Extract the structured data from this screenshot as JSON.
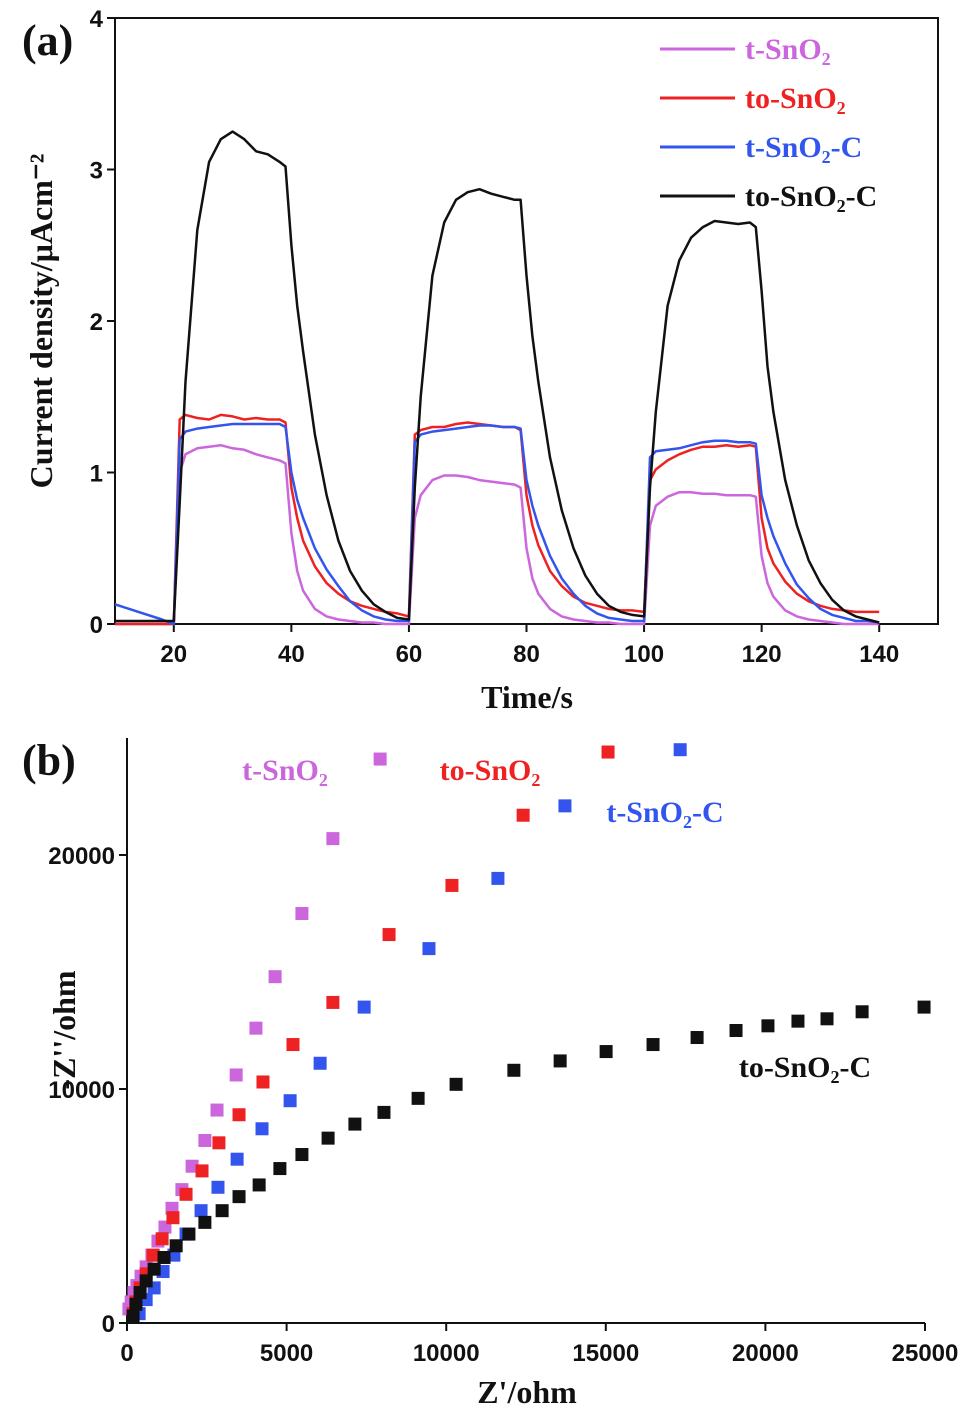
{
  "chart_data": [
    {
      "type": "line",
      "annotations": [
        "(a)"
      ],
      "xlabel": "Time/s",
      "ylabel": "Current density/μAcm⁻²",
      "xlim": [
        10,
        150
      ],
      "ylim": [
        0,
        4
      ],
      "xticks": [
        20,
        40,
        60,
        80,
        100,
        120,
        140
      ],
      "yticks": [
        0,
        1,
        2,
        3,
        4
      ],
      "legend": "upper right",
      "x": [
        10,
        14,
        18,
        20,
        21,
        22,
        24,
        26,
        28,
        30,
        32,
        34,
        36,
        38,
        39,
        40,
        41,
        42,
        44,
        46,
        48,
        50,
        52,
        54,
        56,
        58,
        60,
        61,
        62,
        64,
        66,
        68,
        70,
        72,
        74,
        76,
        78,
        79,
        80,
        81,
        82,
        84,
        86,
        88,
        90,
        92,
        94,
        96,
        98,
        100,
        101,
        102,
        104,
        106,
        108,
        110,
        112,
        114,
        116,
        118,
        119,
        120,
        121,
        122,
        124,
        126,
        128,
        130,
        132,
        134,
        136,
        138,
        140
      ],
      "series": [
        {
          "name": "t-SnO₂",
          "color": "#cc66dd",
          "values": [
            0,
            0,
            0,
            0.0,
            1.0,
            1.12,
            1.16,
            1.17,
            1.18,
            1.16,
            1.15,
            1.12,
            1.1,
            1.08,
            1.06,
            0.6,
            0.35,
            0.22,
            0.1,
            0.05,
            0.03,
            0.02,
            0.01,
            0.01,
            0.0,
            0.0,
            0.0,
            0.7,
            0.85,
            0.95,
            0.98,
            0.98,
            0.97,
            0.95,
            0.94,
            0.93,
            0.92,
            0.9,
            0.5,
            0.3,
            0.2,
            0.1,
            0.05,
            0.03,
            0.02,
            0.01,
            0.01,
            0.0,
            0.0,
            0.0,
            0.65,
            0.78,
            0.84,
            0.87,
            0.87,
            0.86,
            0.86,
            0.85,
            0.85,
            0.85,
            0.84,
            0.45,
            0.27,
            0.18,
            0.09,
            0.05,
            0.03,
            0.02,
            0.01,
            0.0,
            0.0,
            0.0,
            0
          ]
        },
        {
          "name": "to-SnO₂",
          "color": "#ee2222",
          "values": [
            0,
            0,
            0,
            0.0,
            1.35,
            1.38,
            1.36,
            1.35,
            1.38,
            1.37,
            1.35,
            1.36,
            1.35,
            1.35,
            1.33,
            0.9,
            0.7,
            0.55,
            0.38,
            0.27,
            0.2,
            0.15,
            0.12,
            0.1,
            0.08,
            0.07,
            0.05,
            1.25,
            1.28,
            1.3,
            1.3,
            1.32,
            1.33,
            1.32,
            1.31,
            1.3,
            1.3,
            1.28,
            0.85,
            0.65,
            0.52,
            0.35,
            0.25,
            0.18,
            0.14,
            0.12,
            0.1,
            0.09,
            0.09,
            0.08,
            0.95,
            1.02,
            1.08,
            1.12,
            1.15,
            1.17,
            1.17,
            1.18,
            1.17,
            1.18,
            1.17,
            0.7,
            0.5,
            0.4,
            0.28,
            0.2,
            0.15,
            0.12,
            0.1,
            0.09,
            0.08,
            0.08,
            0.08
          ]
        },
        {
          "name": "t-SnO₂-C",
          "color": "#3355ee",
          "values": [
            0.13,
            0.08,
            0.03,
            0.0,
            1.22,
            1.27,
            1.29,
            1.3,
            1.31,
            1.32,
            1.32,
            1.32,
            1.32,
            1.32,
            1.3,
            1.0,
            0.82,
            0.7,
            0.5,
            0.36,
            0.25,
            0.15,
            0.09,
            0.05,
            0.03,
            0.02,
            0.02,
            1.2,
            1.25,
            1.27,
            1.28,
            1.29,
            1.3,
            1.31,
            1.31,
            1.3,
            1.3,
            1.29,
            0.95,
            0.78,
            0.65,
            0.45,
            0.3,
            0.2,
            0.12,
            0.07,
            0.04,
            0.03,
            0.02,
            0.02,
            1.1,
            1.14,
            1.15,
            1.16,
            1.18,
            1.2,
            1.21,
            1.21,
            1.2,
            1.2,
            1.19,
            0.85,
            0.7,
            0.58,
            0.4,
            0.26,
            0.17,
            0.1,
            0.06,
            0.04,
            0.02,
            0.02,
            0.01
          ]
        },
        {
          "name": "to-SnO₂-C",
          "color": "#111111",
          "values": [
            0.02,
            0.02,
            0.02,
            0.02,
            0.8,
            1.6,
            2.6,
            3.05,
            3.2,
            3.25,
            3.2,
            3.12,
            3.1,
            3.05,
            3.02,
            2.5,
            2.1,
            1.8,
            1.25,
            0.85,
            0.55,
            0.35,
            0.22,
            0.13,
            0.08,
            0.04,
            0.03,
            0.9,
            1.5,
            2.3,
            2.65,
            2.8,
            2.85,
            2.87,
            2.84,
            2.82,
            2.8,
            2.8,
            2.3,
            1.9,
            1.6,
            1.1,
            0.75,
            0.5,
            0.32,
            0.2,
            0.12,
            0.08,
            0.06,
            0.05,
            0.9,
            1.4,
            2.1,
            2.4,
            2.55,
            2.62,
            2.66,
            2.65,
            2.64,
            2.65,
            2.62,
            2.2,
            1.7,
            1.4,
            0.95,
            0.65,
            0.42,
            0.27,
            0.16,
            0.09,
            0.05,
            0.03,
            0.01
          ]
        }
      ]
    },
    {
      "type": "scatter",
      "annotations": [
        "(b)"
      ],
      "xlabel": "Z'/ohm",
      "ylabel": "-Z''/ohm",
      "xlim": [
        0,
        25000
      ],
      "ylim": [
        0,
        25000
      ],
      "xticks": [
        0,
        5000,
        10000,
        15000,
        20000,
        25000
      ],
      "yticks": [
        0,
        10000,
        20000
      ],
      "series": [
        {
          "name": "t-SnO₂",
          "color": "#cc66dd",
          "x": [
            7930,
            6450,
            5480,
            4640,
            4040,
            3420,
            2820,
            2440,
            2040,
            1720,
            1410,
            1190,
            970,
            780,
            600,
            440,
            310,
            220,
            130,
            60
          ],
          "values": [
            24100,
            20700,
            17500,
            14800,
            12600,
            10600,
            9100,
            7800,
            6700,
            5700,
            4900,
            4100,
            3500,
            2900,
            2400,
            2000,
            1600,
            1300,
            900,
            600
          ]
        },
        {
          "name": "to-SnO₂",
          "color": "#ee2222",
          "x": [
            15070,
            12410,
            10180,
            8210,
            6450,
            5200,
            4260,
            3510,
            2880,
            2350,
            1850,
            1440,
            1100,
            820,
            600,
            410,
            280,
            190
          ],
          "values": [
            24400,
            21700,
            18700,
            16600,
            13700,
            11900,
            10300,
            8900,
            7700,
            6500,
            5500,
            4500,
            3600,
            2900,
            2100,
            1500,
            900,
            400
          ]
        },
        {
          "name": "t-SnO₂-C",
          "color": "#3355ee",
          "x": [
            17330,
            13720,
            11620,
            9460,
            7430,
            6050,
            5110,
            4230,
            3450,
            2850,
            2320,
            1850,
            1470,
            1130,
            850,
            600,
            380
          ],
          "values": [
            24500,
            22100,
            19000,
            16000,
            13500,
            11100,
            9500,
            8300,
            7000,
            5800,
            4800,
            3800,
            2900,
            2200,
            1500,
            1000,
            400
          ]
        },
        {
          "name": "to-SnO₂-C",
          "color": "#111111",
          "x": [
            24970,
            23030,
            21930,
            21020,
            20080,
            19080,
            17860,
            16480,
            15010,
            13570,
            12120,
            10310,
            9120,
            8050,
            7140,
            6300,
            5480,
            4790,
            4140,
            3510,
            2980,
            2440,
            1940,
            1540,
            1160,
            850,
            600,
            410,
            280,
            190
          ],
          "values": [
            13500,
            13300,
            13000,
            12900,
            12700,
            12500,
            12200,
            11900,
            11600,
            11200,
            10800,
            10200,
            9600,
            9000,
            8500,
            7900,
            7200,
            6600,
            5900,
            5400,
            4800,
            4300,
            3800,
            3300,
            2800,
            2300,
            1800,
            1300,
            800,
            300
          ]
        }
      ]
    }
  ]
}
